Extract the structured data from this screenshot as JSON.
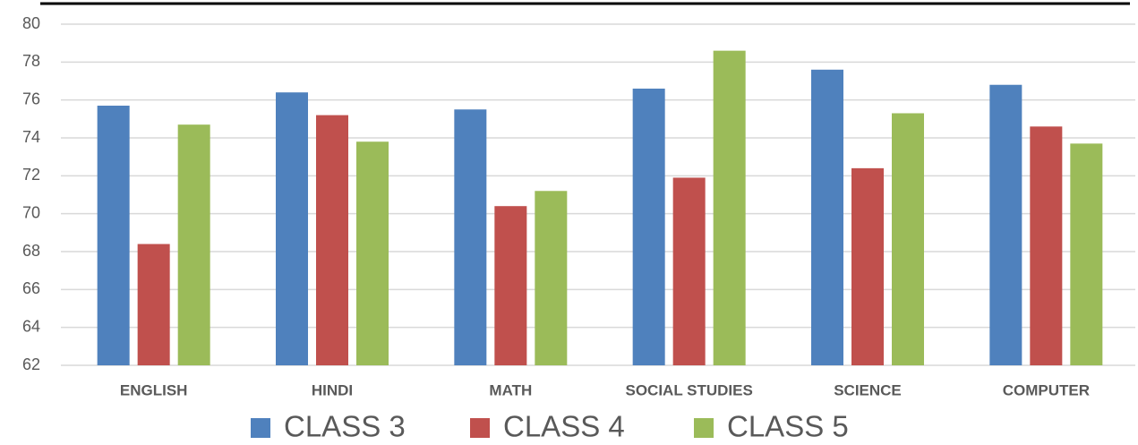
{
  "chart_data": {
    "type": "bar",
    "categories": [
      "ENGLISH",
      "HINDI",
      "MATH",
      "SOCIAL STUDIES",
      "SCIENCE",
      "COMPUTER"
    ],
    "series": [
      {
        "name": "CLASS 3",
        "color": "#4f81bd",
        "values": [
          75.7,
          76.4,
          75.5,
          76.6,
          77.6,
          76.8
        ]
      },
      {
        "name": "CLASS 4",
        "color": "#c0504d",
        "values": [
          68.4,
          75.2,
          70.4,
          71.9,
          72.4,
          74.6
        ]
      },
      {
        "name": "CLASS 5",
        "color": "#9bbb59",
        "values": [
          74.7,
          73.8,
          71.2,
          78.6,
          75.3,
          73.7
        ]
      }
    ],
    "ylim": [
      62,
      80
    ],
    "yticks": [
      62,
      64,
      66,
      68,
      70,
      72,
      74,
      76,
      78,
      80
    ],
    "grid": true,
    "legend": "bottom"
  }
}
